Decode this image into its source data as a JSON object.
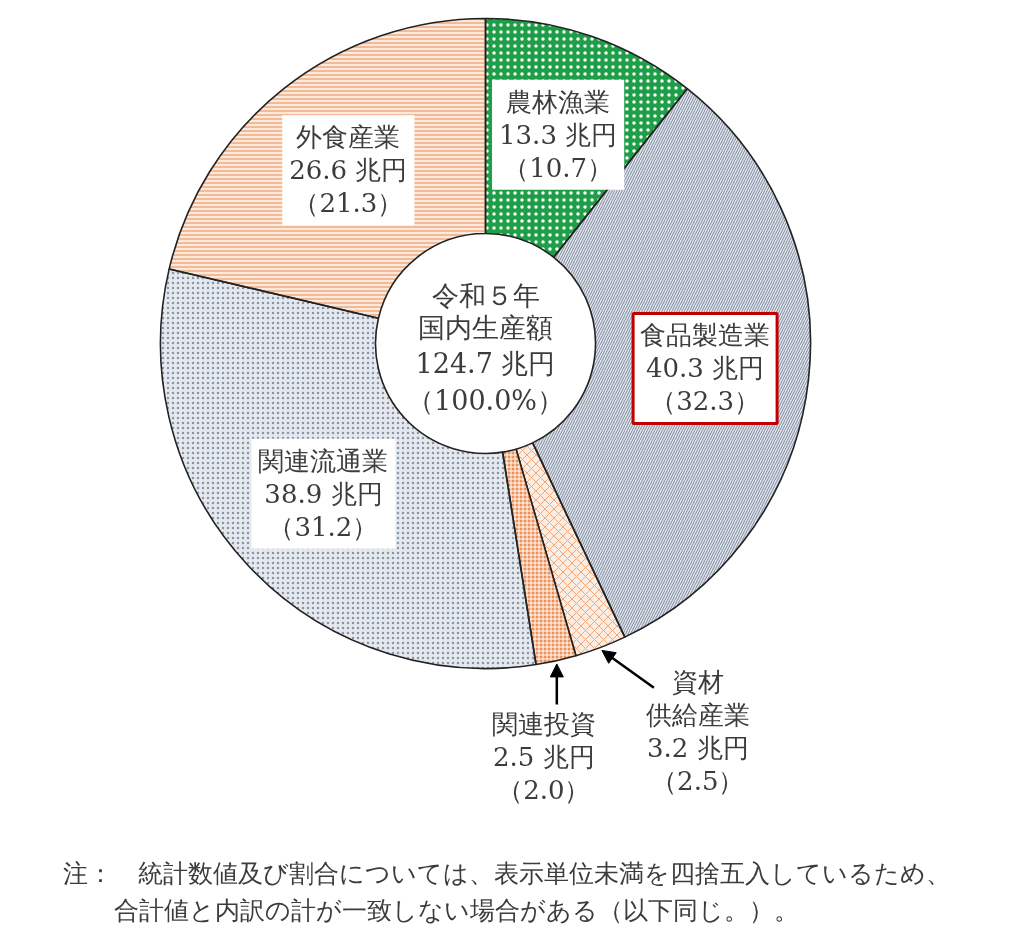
{
  "chart_data": {
    "type": "donut",
    "title": "令和５年",
    "subtitle": "国内生産額124.7 兆円（100.0%）",
    "categories": [
      "農林漁業",
      "食品製造業",
      "資材供給産業",
      "関連投資",
      "関連流通業",
      "外食産業"
    ],
    "values": [
      13.3,
      40.3,
      3.2,
      2.5,
      38.9,
      26.6
    ],
    "colors": [
      "#1f9e48",
      "#7b8aa0",
      "#f0a878",
      "#ef8f55",
      "#8896ab",
      "#ee9a66"
    ],
    "value_labels": [
      "13.3 兆円（10.7）",
      "40.3 兆円（32.3）",
      "3.2 兆円（2.5）",
      "2.5 兆円（2.0）",
      "38.9 兆円（31.2）",
      "26.6 兆円（21.3）"
    ],
    "annotations": [
      "注：　統計数値及び割合については、表示単位未満を四捨五入しているため、合計値と内訳の計が一致しない場合がある（以下同じ。）。"
    ]
  }
}
